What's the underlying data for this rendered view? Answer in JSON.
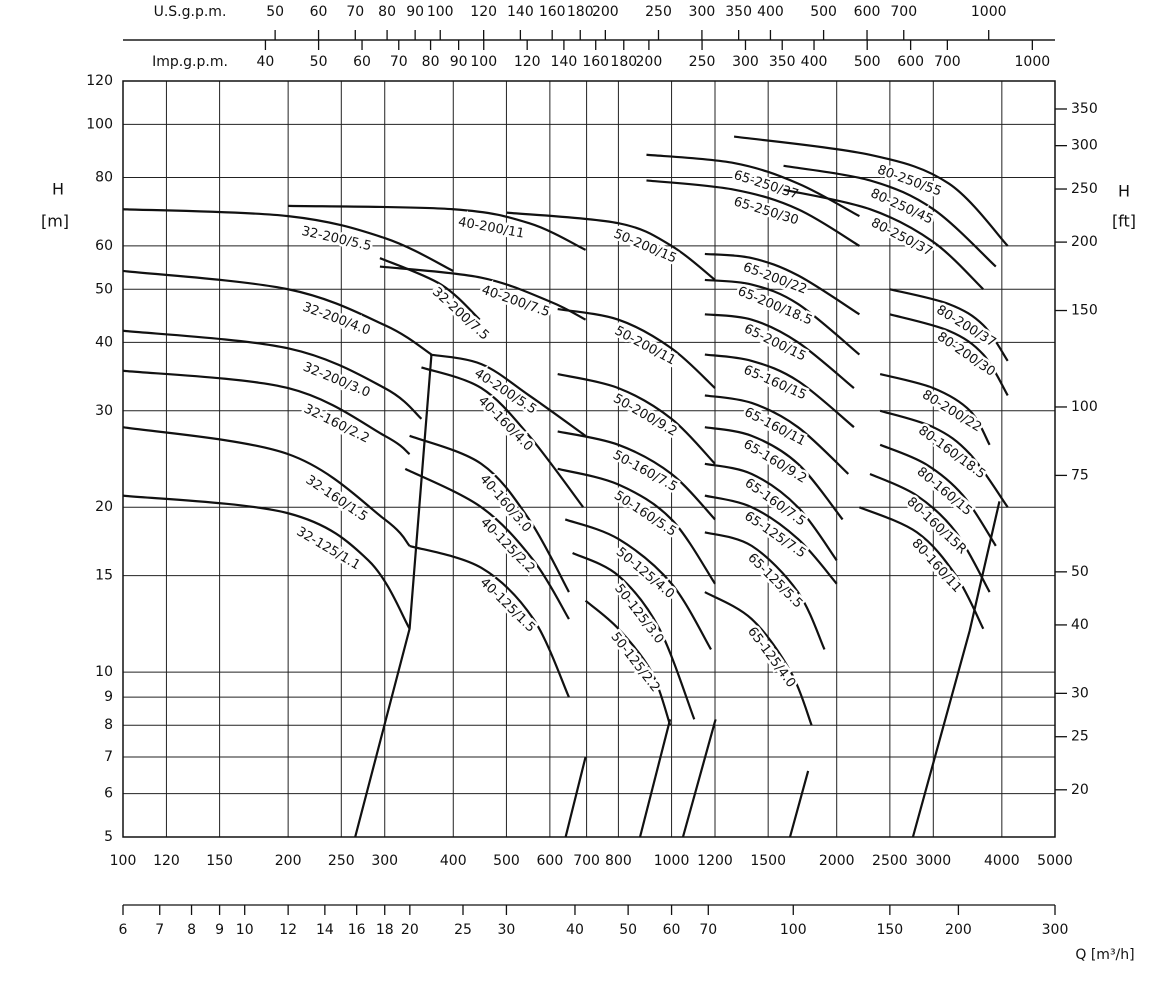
{
  "chart_data": {
    "type": "line",
    "xscale": "log",
    "yscale": "log",
    "grid": true,
    "xlim": [
      100,
      5000
    ],
    "xticks": [
      100,
      120,
      150,
      200,
      250,
      300,
      400,
      500,
      600,
      700,
      800,
      1000,
      1200,
      1500,
      2000,
      2500,
      3000,
      4000,
      5000
    ],
    "ylim": [
      5,
      120
    ],
    "yticks": [
      5,
      6,
      7,
      8,
      9,
      10,
      15,
      20,
      30,
      40,
      50,
      60,
      80,
      100,
      120
    ],
    "y_label": "H",
    "y_label_unit": "[m]",
    "y2lim": [
      16.4,
      393.7
    ],
    "y2ticks": [
      20,
      25,
      30,
      40,
      50,
      75,
      100,
      150,
      200,
      250,
      300,
      350
    ],
    "y2_label": "H",
    "y2_label_unit": "[ft]",
    "extra_x_axes": [
      {
        "label": "U.S.g.p.m.",
        "side": "top",
        "lim": [
          26.4,
          1320.9
        ],
        "ticks": [
          50,
          60,
          70,
          80,
          90,
          100,
          120,
          140,
          160,
          180,
          200,
          250,
          300,
          350,
          400,
          500,
          600,
          700,
          1000
        ]
      },
      {
        "label": "Imp.g.p.m.",
        "side": "top",
        "lim": [
          22.0,
          1099.8
        ],
        "ticks": [
          40,
          50,
          60,
          70,
          80,
          90,
          100,
          120,
          140,
          160,
          180,
          200,
          250,
          300,
          350,
          400,
          500,
          600,
          700,
          1000
        ]
      },
      {
        "label": "Q [m³/h]",
        "side": "bottom",
        "lim": [
          6,
          300
        ],
        "ticks": [
          6,
          7,
          8,
          9,
          10,
          12,
          14,
          16,
          18,
          20,
          25,
          30,
          40,
          50,
          60,
          70,
          100,
          150,
          200,
          300
        ]
      }
    ],
    "series": [
      {
        "name": "32-125/1.1",
        "color": "#111",
        "x": [
          100,
          200,
          280,
          333
        ],
        "values": [
          21,
          19.5,
          16,
          12
        ]
      },
      {
        "name": "32-160/1.5",
        "color": "#111",
        "x": [
          100,
          200,
          300,
          333
        ],
        "values": [
          28,
          25,
          19,
          17
        ]
      },
      {
        "name": "32-160/2.2",
        "color": "#111",
        "x": [
          100,
          200,
          300,
          333
        ],
        "values": [
          35.5,
          33,
          27,
          25
        ]
      },
      {
        "name": "32-200/3.0",
        "color": "#111",
        "x": [
          100,
          200,
          300,
          350
        ],
        "values": [
          42,
          39,
          33,
          29
        ]
      },
      {
        "name": "32-200/4.0",
        "color": "#111",
        "x": [
          100,
          200,
          300,
          365
        ],
        "values": [
          54,
          50,
          43,
          38
        ]
      },
      {
        "name": "32-200/5.5",
        "color": "#111",
        "x": [
          100,
          200,
          300,
          400
        ],
        "values": [
          70,
          68,
          62,
          54
        ]
      },
      {
        "name": "32-200/7.5",
        "color": "#111",
        "x": [
          294,
          380,
          447
        ],
        "values": [
          57,
          51,
          44
        ]
      },
      {
        "name": "40-125/1.5",
        "color": "#111",
        "x": [
          333,
          450,
          560,
          650
        ],
        "values": [
          17,
          15.5,
          12.5,
          9
        ]
      },
      {
        "name": "40-125/2.2",
        "color": "#111",
        "x": [
          327,
          450,
          560,
          650
        ],
        "values": [
          23.5,
          20,
          16,
          12.5
        ]
      },
      {
        "name": "40-160/3.0",
        "color": "#111",
        "x": [
          333,
          450,
          550,
          650
        ],
        "values": [
          27,
          24,
          19,
          14
        ]
      },
      {
        "name": "40-160/4.0",
        "color": "#111",
        "x": [
          350,
          450,
          550,
          690
        ],
        "values": [
          36,
          33,
          27,
          20
        ]
      },
      {
        "name": "40-200/5.5",
        "color": "#111",
        "x": [
          363,
          450,
          550,
          697
        ],
        "values": [
          38,
          36.5,
          32,
          27
        ]
      },
      {
        "name": "40-200/7.5",
        "color": "#111",
        "x": [
          294,
          450,
          600,
          697
        ],
        "values": [
          55,
          52.5,
          47.5,
          44
        ]
      },
      {
        "name": "40-200/11",
        "color": "#111",
        "x": [
          200,
          400,
          550,
          697
        ],
        "values": [
          71,
          70,
          66,
          59
        ]
      },
      {
        "name": "50-125/2.2",
        "color": "#111",
        "x": [
          697,
          800,
          920,
          994
        ],
        "values": [
          13.5,
          12,
          10,
          8
        ]
      },
      {
        "name": "50-125/3.0",
        "color": "#111",
        "x": [
          660,
          800,
          950,
          1100
        ],
        "values": [
          16.5,
          15,
          12,
          8.2
        ]
      },
      {
        "name": "50-125/4.0",
        "color": "#111",
        "x": [
          640,
          800,
          1000,
          1180
        ],
        "values": [
          19,
          17.5,
          14.5,
          11
        ]
      },
      {
        "name": "50-160/5.5",
        "color": "#111",
        "x": [
          620,
          800,
          1000,
          1200
        ],
        "values": [
          23.5,
          22,
          19,
          14.5
        ]
      },
      {
        "name": "50-160/7.5",
        "color": "#111",
        "x": [
          620,
          800,
          1000,
          1200
        ],
        "values": [
          27.5,
          26,
          23,
          19
        ]
      },
      {
        "name": "50-200/9.2",
        "color": "#111",
        "x": [
          620,
          800,
          1000,
          1200
        ],
        "values": [
          35,
          33,
          29,
          24
        ]
      },
      {
        "name": "50-200/11",
        "color": "#111",
        "x": [
          620,
          800,
          1000,
          1200
        ],
        "values": [
          46,
          44,
          39,
          33
        ]
      },
      {
        "name": "50-200/15",
        "color": "#111",
        "x": [
          501,
          800,
          1000,
          1200
        ],
        "values": [
          69,
          66,
          60,
          52
        ]
      },
      {
        "name": "65-125/4.0",
        "color": "#111",
        "x": [
          1150,
          1400,
          1650,
          1800
        ],
        "values": [
          14,
          12.5,
          10,
          8
        ]
      },
      {
        "name": "65-125/5.5",
        "color": "#111",
        "x": [
          1150,
          1400,
          1700,
          1900
        ],
        "values": [
          18,
          17,
          14,
          11
        ]
      },
      {
        "name": "65-125/7.5",
        "color": "#111",
        "x": [
          1150,
          1400,
          1700,
          2000
        ],
        "values": [
          21,
          20,
          17.5,
          14.5
        ]
      },
      {
        "name": "65-160/7.5",
        "color": "#111",
        "x": [
          1150,
          1400,
          1700,
          2000
        ],
        "values": [
          24,
          23,
          20,
          16
        ]
      },
      {
        "name": "65-160/9.2",
        "color": "#111",
        "x": [
          1150,
          1400,
          1700,
          2050
        ],
        "values": [
          28,
          27,
          24,
          19
        ]
      },
      {
        "name": "65-160/11",
        "color": "#111",
        "x": [
          1150,
          1400,
          1700,
          2100
        ],
        "values": [
          32,
          31,
          28,
          23
        ]
      },
      {
        "name": "65-160/15",
        "color": "#111",
        "x": [
          1150,
          1400,
          1700,
          2150
        ],
        "values": [
          38,
          37,
          34,
          28
        ]
      },
      {
        "name": "65-200/15",
        "color": "#111",
        "x": [
          1150,
          1400,
          1700,
          2150
        ],
        "values": [
          45,
          44,
          40,
          33
        ]
      },
      {
        "name": "65-200/18.5",
        "color": "#111",
        "x": [
          1150,
          1400,
          1700,
          2200
        ],
        "values": [
          52,
          51,
          47,
          38
        ]
      },
      {
        "name": "65-200/22",
        "color": "#111",
        "x": [
          1150,
          1400,
          1700,
          2200
        ],
        "values": [
          58,
          57,
          53,
          45
        ]
      },
      {
        "name": "65-250/30",
        "color": "#111",
        "x": [
          900,
          1300,
          1700,
          2200
        ],
        "values": [
          79,
          76,
          70,
          60
        ]
      },
      {
        "name": "65-250/37",
        "color": "#111",
        "x": [
          900,
          1300,
          1700,
          2200
        ],
        "values": [
          88,
          85,
          78,
          68
        ]
      },
      {
        "name": "80-160/11",
        "color": "#111",
        "x": [
          2200,
          2800,
          3300,
          3700
        ],
        "values": [
          20,
          18,
          15,
          12
        ]
      },
      {
        "name": "80-160/15R",
        "color": "#111",
        "x": [
          2300,
          2800,
          3300,
          3800
        ],
        "values": [
          23,
          21,
          18,
          14
        ]
      },
      {
        "name": "80-160/15",
        "color": "#111",
        "x": [
          2400,
          2900,
          3400,
          3900
        ],
        "values": [
          26,
          24,
          21,
          17
        ]
      },
      {
        "name": "80-160/18.5",
        "color": "#111",
        "x": [
          2400,
          3000,
          3500,
          4100
        ],
        "values": [
          30,
          28,
          25,
          20
        ]
      },
      {
        "name": "80-200/22",
        "color": "#111",
        "x": [
          2400,
          3000,
          3500,
          3800
        ],
        "values": [
          35,
          33,
          30,
          26
        ]
      },
      {
        "name": "80-200/30",
        "color": "#111",
        "x": [
          2500,
          3200,
          3700,
          4100
        ],
        "values": [
          45,
          42,
          38,
          32
        ]
      },
      {
        "name": "80-200/37",
        "color": "#111",
        "x": [
          2500,
          3200,
          3700,
          4100
        ],
        "values": [
          50,
          47,
          43,
          37
        ]
      },
      {
        "name": "80-250/37",
        "color": "#111",
        "x": [
          1600,
          2300,
          3000,
          3700
        ],
        "values": [
          76,
          70,
          61,
          50
        ]
      },
      {
        "name": "80-250/45",
        "color": "#111",
        "x": [
          1600,
          2300,
          3000,
          3900
        ],
        "values": [
          84,
          79,
          70,
          55
        ]
      },
      {
        "name": "80-250/55",
        "color": "#111",
        "x": [
          1300,
          2300,
          3200,
          4100
        ],
        "values": [
          95,
          88,
          78,
          60
        ]
      }
    ],
    "outlines": [
      {
        "x": [
          265,
          333,
          365
        ],
        "y": [
          5,
          12,
          38
        ]
      },
      {
        "x": [
          641,
          697
        ],
        "y": [
          5,
          7
        ]
      },
      {
        "x": [
          876,
          994
        ],
        "y": [
          5,
          8.2
        ]
      },
      {
        "x": [
          1049,
          1203
        ],
        "y": [
          5,
          8.2
        ]
      },
      {
        "x": [
          1644,
          1774
        ],
        "y": [
          5,
          6.6
        ]
      },
      {
        "x": [
          2754,
          3495,
          3960
        ],
        "y": [
          5,
          11.9,
          20.5
        ]
      }
    ]
  }
}
